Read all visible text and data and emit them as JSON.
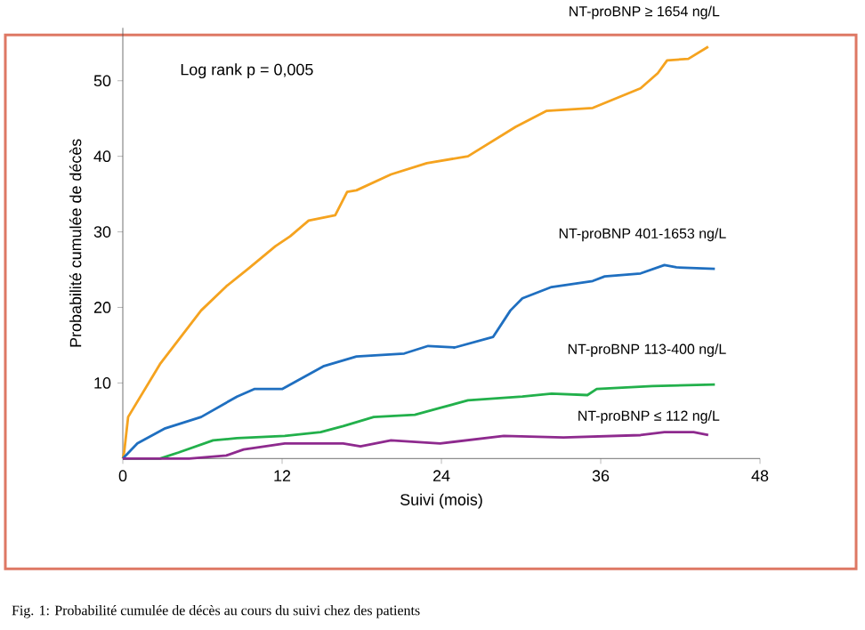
{
  "chart_data": {
    "type": "line",
    "xlabel": "Suivi (mois)",
    "ylabel": "Probabilité cumulée de décès",
    "annotations": [
      "Log rank p = 0,005",
      "Fig. 1: Probabilité cumulée de décès au cours du suivi chez des patients"
    ],
    "xlim": [
      0,
      48
    ],
    "xticks": [
      0,
      12,
      24,
      36,
      48
    ],
    "ylim": [
      0,
      57
    ],
    "yticks": [
      10,
      20,
      30,
      40,
      50
    ],
    "grid": false,
    "marker": "none",
    "line_style": "solid",
    "series": [
      {
        "name": "NT-proBNP ≥ 1654 ng/L",
        "color": "#f5a31f",
        "x": [
          0,
          0.1,
          0.4,
          2.8,
          5.9,
          7.8,
          9.5,
          11.5,
          12.6,
          14,
          16,
          16.9,
          17.6,
          20.2,
          22.9,
          26,
          29.6,
          31.9,
          35.4,
          39,
          40.3,
          41,
          42.6,
          44.1
        ],
        "values": [
          0,
          0.8,
          5.5,
          12.5,
          19.6,
          22.8,
          25.2,
          28.1,
          29.4,
          31.5,
          32.2,
          35.3,
          35.5,
          37.6,
          39.1,
          40,
          43.9,
          46,
          46.4,
          49,
          51,
          52.7,
          52.9,
          54.5
        ]
      },
      {
        "name": "NT-proBNP 401-1653 ng/L",
        "color": "#1f6fc0",
        "x": [
          0,
          1.1,
          3.2,
          5.9,
          8.6,
          9.9,
          12,
          15.1,
          17.6,
          21.2,
          23,
          25,
          27.9,
          29.2,
          30.1,
          32.3,
          35.4,
          36.3,
          39,
          40.8,
          41.7,
          44.6
        ],
        "values": [
          0,
          2,
          4,
          5.5,
          8.2,
          9.2,
          9.2,
          12.2,
          13.5,
          13.9,
          14.9,
          14.7,
          16.1,
          19.6,
          21.2,
          22.7,
          23.5,
          24.1,
          24.5,
          25.6,
          25.3,
          25.1
        ]
      },
      {
        "name": "NT-proBNP 113-400 ng/L",
        "color": "#22b04b",
        "x": [
          0,
          2.8,
          4.2,
          6.8,
          8.6,
          12.2,
          14.9,
          16.6,
          18.9,
          22,
          23.9,
          26,
          30.1,
          32.3,
          35,
          35.7,
          39.9,
          44.6
        ],
        "values": [
          0,
          0,
          0.8,
          2.4,
          2.7,
          3,
          3.5,
          4.3,
          5.5,
          5.8,
          6.7,
          7.7,
          8.2,
          8.6,
          8.4,
          9.2,
          9.6,
          9.8
        ]
      },
      {
        "name": "NT-proBNP ≤ 112 ng/L",
        "color": "#8e2a8e",
        "x": [
          0,
          5,
          7.8,
          9.1,
          12.2,
          16.6,
          17.9,
          20.2,
          23.9,
          28.7,
          33.2,
          39,
          40.8,
          43,
          44.1
        ],
        "values": [
          0,
          0,
          0.4,
          1.2,
          2,
          2,
          1.6,
          2.4,
          2,
          3,
          2.8,
          3.1,
          3.5,
          3.5,
          3.1
        ]
      }
    ]
  }
}
